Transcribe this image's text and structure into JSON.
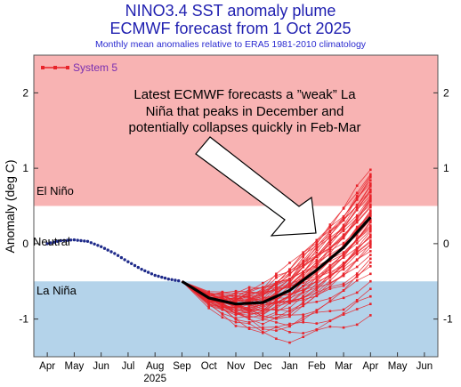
{
  "header": {
    "title": "NINO3.4 SST anomaly plume",
    "subtitle": "ECMWF forecast from 1 Oct 2025",
    "note": "Monthly mean anomalies relative to ERA5 1981-2010 climatology"
  },
  "colors": {
    "el_nino_band": "#f8b3b3",
    "la_nina_band": "#b4d3ea",
    "ensemble": "#e8242b",
    "observed": "#1e2a8a",
    "mean": "#000000",
    "legend_text": "#7a2fb0"
  },
  "chart_data": {
    "type": "line",
    "title": "NINO3.4 SST anomaly plume",
    "ylabel": "Anomaly (deg C)",
    "xlabel": "",
    "ylim": [
      -1.5,
      2.5
    ],
    "yticks": [
      -1,
      0,
      1,
      2
    ],
    "ytick_labels": [
      "-1",
      "0",
      "1",
      "2"
    ],
    "x_months": [
      "Apr",
      "May",
      "Jun",
      "Jul",
      "Aug",
      "Sep",
      "Oct",
      "Nov",
      "Dec",
      "Jan",
      "Feb",
      "Mar",
      "Apr",
      "May",
      "Jun"
    ],
    "x_year_label": "2025",
    "x_year_under": "Aug",
    "grid": false,
    "legend": {
      "position": "top-left",
      "entries": [
        "System 5"
      ]
    },
    "regions": [
      {
        "label": "El Niño",
        "from": 0.5,
        "to": 2.5
      },
      {
        "label": "Neutral",
        "from": -0.5,
        "to": 0.5
      },
      {
        "label": "La Niña",
        "from": -1.5,
        "to": -0.5
      }
    ],
    "observed": {
      "x": [
        0,
        0.5,
        1,
        1.5,
        2,
        2.5,
        3,
        3.5,
        4,
        4.5,
        5
      ],
      "y": [
        0.0,
        0.04,
        0.05,
        0.03,
        -0.04,
        -0.13,
        -0.24,
        -0.34,
        -0.42,
        -0.47,
        -0.5
      ]
    },
    "ensemble_mean": {
      "x": [
        5,
        6,
        7,
        8,
        9,
        10,
        11,
        12
      ],
      "y": [
        -0.5,
        -0.72,
        -0.8,
        -0.78,
        -0.62,
        -0.35,
        -0.05,
        0.35
      ]
    },
    "ensemble_start_x": 5,
    "ensemble_start_y": -0.5,
    "ensemble_x": [
      6,
      6.5,
      7,
      7.5,
      8,
      8.5,
      9,
      9.5,
      10,
      10.5,
      11,
      11.5,
      12
    ],
    "ensemble_count": 51,
    "ensemble_endpoints_apr": [
      0.98,
      0.92,
      0.88,
      0.84,
      0.8,
      0.76,
      0.72,
      0.68,
      0.64,
      0.6,
      0.56,
      0.52,
      0.48,
      0.44,
      0.4,
      0.36,
      0.32,
      0.28,
      0.24,
      0.2,
      0.16,
      0.12,
      0.08,
      0.04,
      0.0,
      -0.05,
      -0.1,
      -0.15,
      -0.2,
      -0.3,
      -0.4,
      -0.5,
      -0.6,
      -0.7,
      -0.8,
      -0.95,
      0.9,
      0.7,
      0.5,
      0.3,
      0.1,
      -0.02,
      0.62,
      0.42,
      0.22,
      0.02,
      0.78,
      0.58,
      0.38,
      0.18,
      -0.25
    ],
    "annotation": "Latest ECMWF forecasts a ”weak” La Niña that peaks in December and potentially collapses quickly in Feb-Mar"
  }
}
